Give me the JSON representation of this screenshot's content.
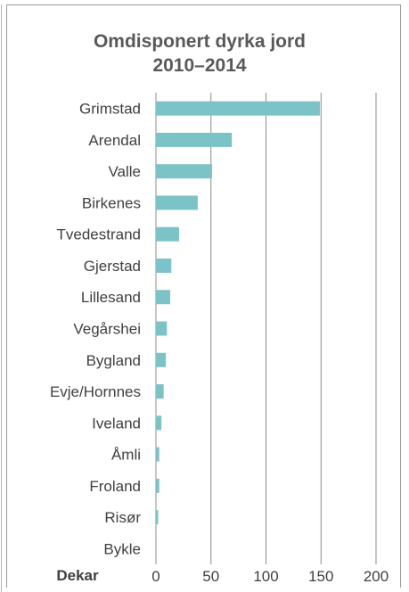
{
  "chart_data": {
    "type": "bar",
    "orientation": "horizontal",
    "title_lines": [
      "Omdisponert dyrka jord",
      "2010–2014"
    ],
    "xlabel": "Dekar",
    "categories": [
      "Grimstad",
      "Arendal",
      "Valle",
      "Birkenes",
      "Tvedestrand",
      "Gjerstad",
      "Lillesand",
      "Vegårshei",
      "Bygland",
      "Evje/Hornnes",
      "Iveland",
      "Åmli",
      "Froland",
      "Risør",
      "Bykle"
    ],
    "values": [
      149,
      69,
      51,
      38,
      21,
      14,
      13,
      10,
      9,
      7,
      5,
      3,
      3,
      2,
      0
    ],
    "xlim": [
      0,
      200
    ],
    "xticks": [
      0,
      50,
      100,
      150,
      200
    ],
    "bar_color": "#7cc3c8",
    "grid": "vertical",
    "legend": "none"
  }
}
